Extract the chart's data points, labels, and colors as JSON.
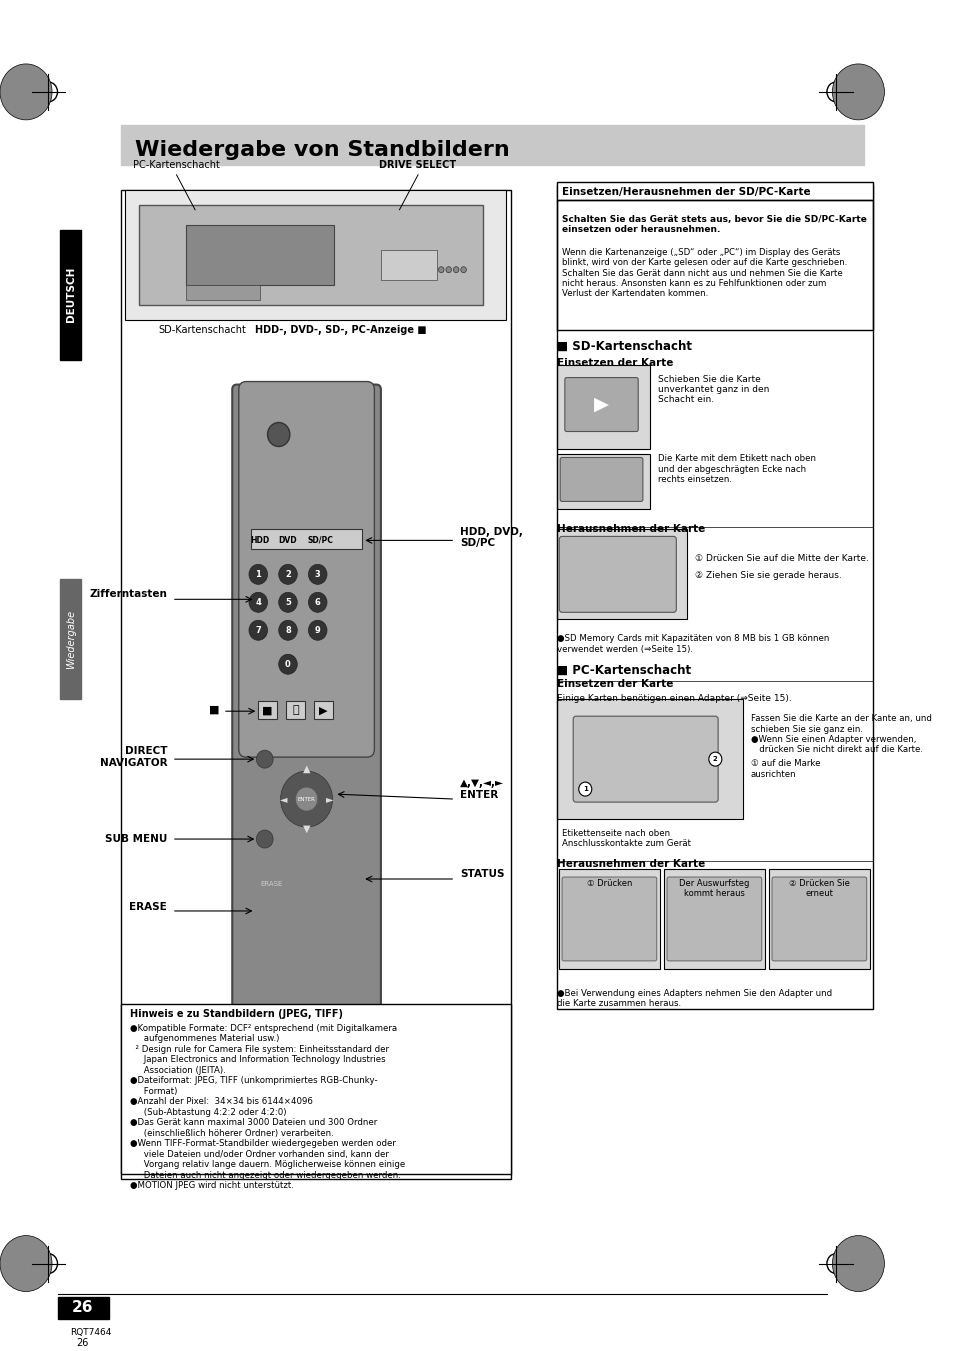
{
  "page_bg": "#ffffff",
  "title_bar_color": "#c8c8c8",
  "title_text": "Wiedergabe von Standbildern",
  "title_fontsize": 16,
  "title_bold": true,
  "left_sidebar_deutsch_color": "#1a1a1a",
  "left_sidebar_wiedergabe_color": "#555555",
  "page_number": "26",
  "rqt_number": "RQT7464",
  "section_left_box_label": "Hinweis e zu Standbildern (JPEG, TIFF)",
  "section_left_box_text": [
    "●Kompatible Formate: DCF² entsprechend (mit Digitalkamera",
    "     aufgenommenes Material usw.)",
    "  ² Design rule for Camera File system: Einheitsstandard der",
    "     Japan Electronics and Information Technology Industries",
    "     Association (JEITA).",
    "●Dateiformat: JPEG, TIFF (unkomprimiertes RGB-Chunky-",
    "     Format)",
    "●Anzahl der Pixel:  34×34 bis 6144×4096",
    "     (Sub-Abtastung 4:2:2 oder 4:2:0)",
    "●Das Gerät kann maximal 3000 Dateien und 300 Ordner",
    "     (einschließlich höherer Ordner) verarbeiten.",
    "●Wenn TIFF-Format-Standbilder wiedergegeben werden oder",
    "     viele Dateien und/oder Ordner vorhanden sind, kann der",
    "     Vorgang relativ lange dauern. Möglicherweise können einige",
    "     Dateien auch nicht angezeigt oder wiedergegeben werden.",
    "●MOTION JPEG wird nicht unterstützt."
  ],
  "right_top_box_label": "Einsetzen/Herausnehmen der SD/PC-Karte",
  "right_top_bold_text": "Schalten Sie das Gerät stets aus, bevor Sie die SD/PC-Karte\neinsetzen oder herausnehmen.",
  "right_top_body_text": "Wenn die Kartenanzeige („SD“ oder „PC“) im Display des Geräts\nblinkt, wird von der Karte gelesen oder auf die Karte geschrieben.\nSchalten Sie das Gerät dann nicht aus und nehmen Sie die Karte\nnicht heraus. Ansonsten kann es zu Fehlfunktionen oder zum\nVerlust der Kartendaten kommen.",
  "sd_section_title": "■ SD-Kartenschacht",
  "sd_einsetzen_title": "Einsetzen der Karte",
  "sd_einsetzen_text1": "Schieben Sie die Karte\nunverkantet ganz in den\nSchacht ein.",
  "sd_einsetzen_text2": "Die Karte mit dem Etikett nach oben\nund der abgeschrägten Ecke nach\nrechts einsetzen.",
  "sd_herausnehmen_title": "Herausnehmen der Karte",
  "sd_herausnehmen_text1": "① Drücken Sie auf die Mitte der Karte.",
  "sd_herausnehmen_text2": "② Ziehen Sie sie gerade heraus.",
  "sd_note": "●SD Memory Cards mit Kapazitäten von 8 MB bis 1 GB können\nverwendet werden (⇒Seite 15).",
  "pc_section_title": "■ PC-Kartenschacht",
  "pc_einsetzen_title": "Einsetzen der Karte",
  "pc_einsetzen_text1": "Einige Karten benötigen einen Adapter (⇒Seite 15).",
  "pc_einsetzen_text2": "Fassen Sie die Karte an der Kante an, und\nschieben Sie sie ganz ein.\n●Wenn Sie einen Adapter verwenden,\n   drücken Sie nicht direkt auf die Karte.",
  "pc_einsetzen_text3": "① auf die Marke\nausrichten",
  "pc_einsetzen_text4": "Etikettenseite nach oben\nAnschlusskontakte zum Gerät",
  "pc_herausnehmen_title": "Herausnehmen der Karte",
  "pc_herausnehmen_cols": [
    "① Drücken",
    "Der Auswurfsteg\nkommt heraus",
    "② Drücken Sie\nerneut"
  ],
  "pc_note": "●Bei Verwendung eines Adapters nehmen Sie den Adapter und\ndie Karte zusammen heraus.",
  "device_labels": {
    "pc_karte": "PC-Kartenschacht",
    "drive_select": "DRIVE SELECT",
    "sd_karte": "SD-Kartenschacht",
    "hdd_dvd": "HDD-, DVD-, SD-, PC-Anzeige ■"
  },
  "remote_labels": {
    "hdd_dvd_sdpc": "HDD, DVD,\nSD/PC",
    "zifferntasten": "Zifferntasten",
    "direct_nav": "DIRECT\nNAVIGATOR",
    "arrows_enter": "▲,▼,◄,►\nENTER",
    "sub_menu": "SUB MENU",
    "status": "STATUS",
    "erase": "ERASE",
    "stop_square": "■"
  }
}
